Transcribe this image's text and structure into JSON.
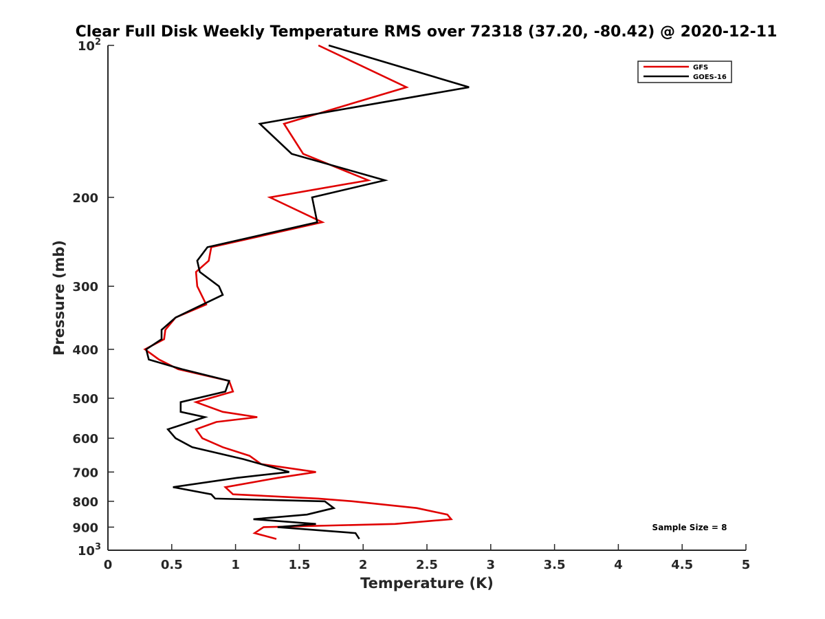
{
  "chart_data": {
    "type": "line",
    "title": "Clear Full Disk Weekly Temperature RMS over 72318 (37.20, -80.42) @ 2020-12-11",
    "xlabel": "Temperature (K)",
    "ylabel": "Pressure (mb)",
    "xlim": [
      0,
      5
    ],
    "ylim": [
      100,
      1000
    ],
    "y_scale": "log",
    "y_reversed": true,
    "grid": false,
    "legend_position": "top-right",
    "x_ticks": [
      "0",
      "0.5",
      "1",
      "1.5",
      "2",
      "2.5",
      "3",
      "3.5",
      "4",
      "4.5",
      "5"
    ],
    "y_ticks": [
      {
        "value": 100,
        "base": "10",
        "exp": "2"
      },
      {
        "value": 200,
        "label": "200"
      },
      {
        "value": 300,
        "label": "300"
      },
      {
        "value": 400,
        "label": "400"
      },
      {
        "value": 500,
        "label": "500"
      },
      {
        "value": 600,
        "label": "600"
      },
      {
        "value": 700,
        "label": "700"
      },
      {
        "value": 800,
        "label": "800"
      },
      {
        "value": 900,
        "label": "900"
      },
      {
        "value": 1000,
        "base": "10",
        "exp": "3"
      }
    ],
    "annotation": "Sample Size = 8",
    "series": [
      {
        "name": "GFS",
        "color": "#e00000",
        "points": [
          [
            1.65,
            100
          ],
          [
            2.34,
            121
          ],
          [
            1.38,
            143
          ],
          [
            1.53,
            164
          ],
          [
            2.04,
            185
          ],
          [
            1.27,
            200
          ],
          [
            1.68,
            224
          ],
          [
            0.81,
            251
          ],
          [
            0.79,
            267
          ],
          [
            0.69,
            281
          ],
          [
            0.7,
            300
          ],
          [
            0.77,
            326
          ],
          [
            0.53,
            346
          ],
          [
            0.45,
            366
          ],
          [
            0.44,
            382
          ],
          [
            0.29,
            400
          ],
          [
            0.4,
            419
          ],
          [
            0.55,
            438
          ],
          [
            0.95,
            462
          ],
          [
            0.98,
            485
          ],
          [
            0.69,
            509
          ],
          [
            0.9,
            532
          ],
          [
            1.17,
            545
          ],
          [
            0.85,
            557
          ],
          [
            0.69,
            576
          ],
          [
            0.74,
            600
          ],
          [
            0.9,
            625
          ],
          [
            1.11,
            650
          ],
          [
            1.2,
            675
          ],
          [
            1.63,
            700
          ],
          [
            1.33,
            719
          ],
          [
            0.92,
            750
          ],
          [
            0.98,
            775
          ],
          [
            1.65,
            790
          ],
          [
            1.92,
            800
          ],
          [
            2.42,
            825
          ],
          [
            2.66,
            850
          ],
          [
            2.69,
            868
          ],
          [
            2.25,
            887
          ],
          [
            1.22,
            900
          ],
          [
            1.15,
            925
          ],
          [
            1.32,
            950
          ]
        ]
      },
      {
        "name": "GOES-16",
        "color": "#000000",
        "points": [
          [
            1.73,
            100
          ],
          [
            2.83,
            121
          ],
          [
            1.19,
            143
          ],
          [
            1.44,
            164
          ],
          [
            2.17,
            185
          ],
          [
            1.6,
            200
          ],
          [
            1.64,
            224
          ],
          [
            0.78,
            251
          ],
          [
            0.7,
            267
          ],
          [
            0.72,
            281
          ],
          [
            0.87,
            300
          ],
          [
            0.9,
            312
          ],
          [
            0.53,
            346
          ],
          [
            0.42,
            366
          ],
          [
            0.42,
            382
          ],
          [
            0.3,
            400
          ],
          [
            0.32,
            419
          ],
          [
            0.58,
            438
          ],
          [
            0.95,
            462
          ],
          [
            0.92,
            485
          ],
          [
            0.57,
            509
          ],
          [
            0.57,
            532
          ],
          [
            0.76,
            545
          ],
          [
            0.47,
            576
          ],
          [
            0.53,
            600
          ],
          [
            0.66,
            625
          ],
          [
            1.06,
            660
          ],
          [
            1.42,
            700
          ],
          [
            1.01,
            719
          ],
          [
            0.51,
            750
          ],
          [
            0.81,
            775
          ],
          [
            0.84,
            790
          ],
          [
            1.7,
            800
          ],
          [
            1.77,
            825
          ],
          [
            1.56,
            850
          ],
          [
            1.14,
            868
          ],
          [
            1.63,
            887
          ],
          [
            1.33,
            900
          ],
          [
            1.94,
            925
          ],
          [
            1.97,
            950
          ]
        ]
      }
    ]
  }
}
